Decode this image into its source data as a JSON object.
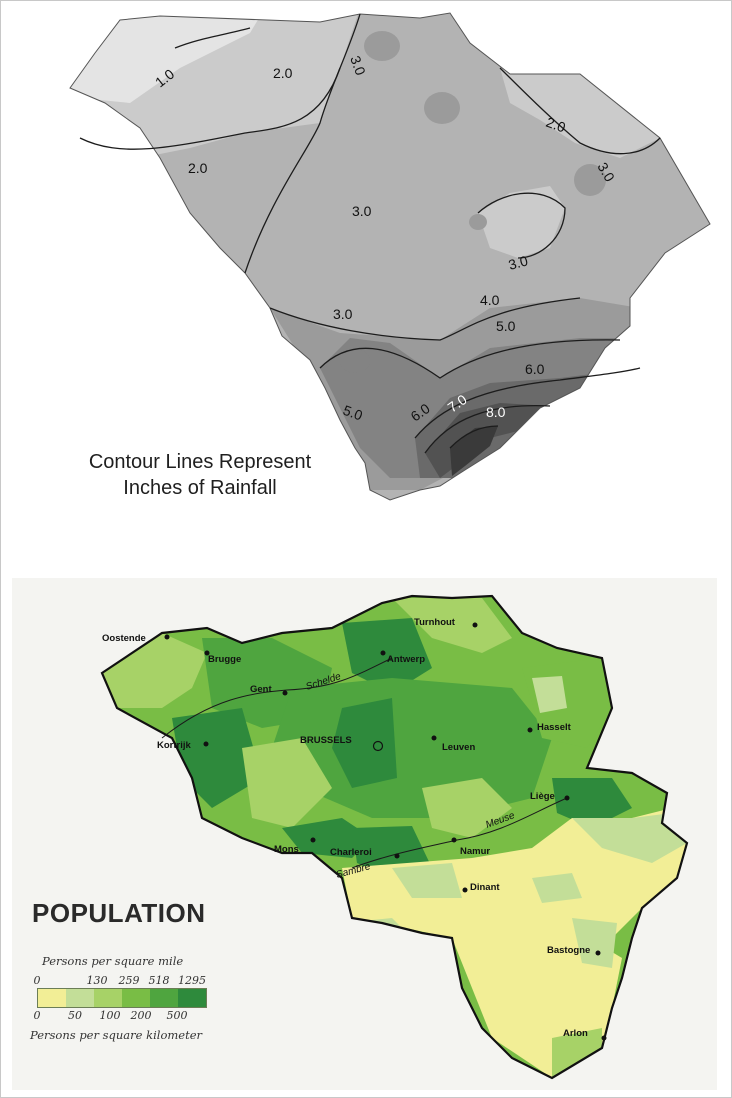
{
  "rainfall_map": {
    "caption_line1": "Contour Lines Represent",
    "caption_line2": "Inches of Rainfall",
    "contour_labels": [
      "1.0",
      "2.0",
      "3.0",
      "2.0",
      "2.0",
      "3.0",
      "3.0",
      "3.0",
      "3.0",
      "4.0",
      "5.0",
      "5.0",
      "6.0",
      "6.0",
      "7.0",
      "8.0"
    ],
    "shades": [
      "#e4e4e4",
      "#cbcbcb",
      "#b3b3b3",
      "#9b9b9b",
      "#838383",
      "#6a6a6a",
      "#525252",
      "#3a3a3a"
    ]
  },
  "population_map": {
    "title": "POPULATION",
    "legend": {
      "top_label": "Persons per square mile",
      "bottom_label": "Persons per square kilometer",
      "mile_ticks": [
        "0",
        "130",
        "259",
        "518",
        "1295"
      ],
      "km_ticks": [
        "0",
        "50",
        "100",
        "200",
        "500"
      ],
      "colors": [
        "#f2ee96",
        "#c3de98",
        "#a7d267",
        "#79bd45",
        "#4fa53f",
        "#2e8a3c"
      ]
    },
    "cities": [
      "Oostende",
      "Brugge",
      "Gent",
      "Antwerp",
      "Turnhout",
      "Hasselt",
      "Kortrijk",
      "BRUSSELS",
      "Leuven",
      "Liège",
      "Mons",
      "Charleroi",
      "Namur",
      "Dinant",
      "Bastogne",
      "Arlon"
    ],
    "rivers": [
      "Schelde",
      "Meuse",
      "Sambre"
    ]
  }
}
